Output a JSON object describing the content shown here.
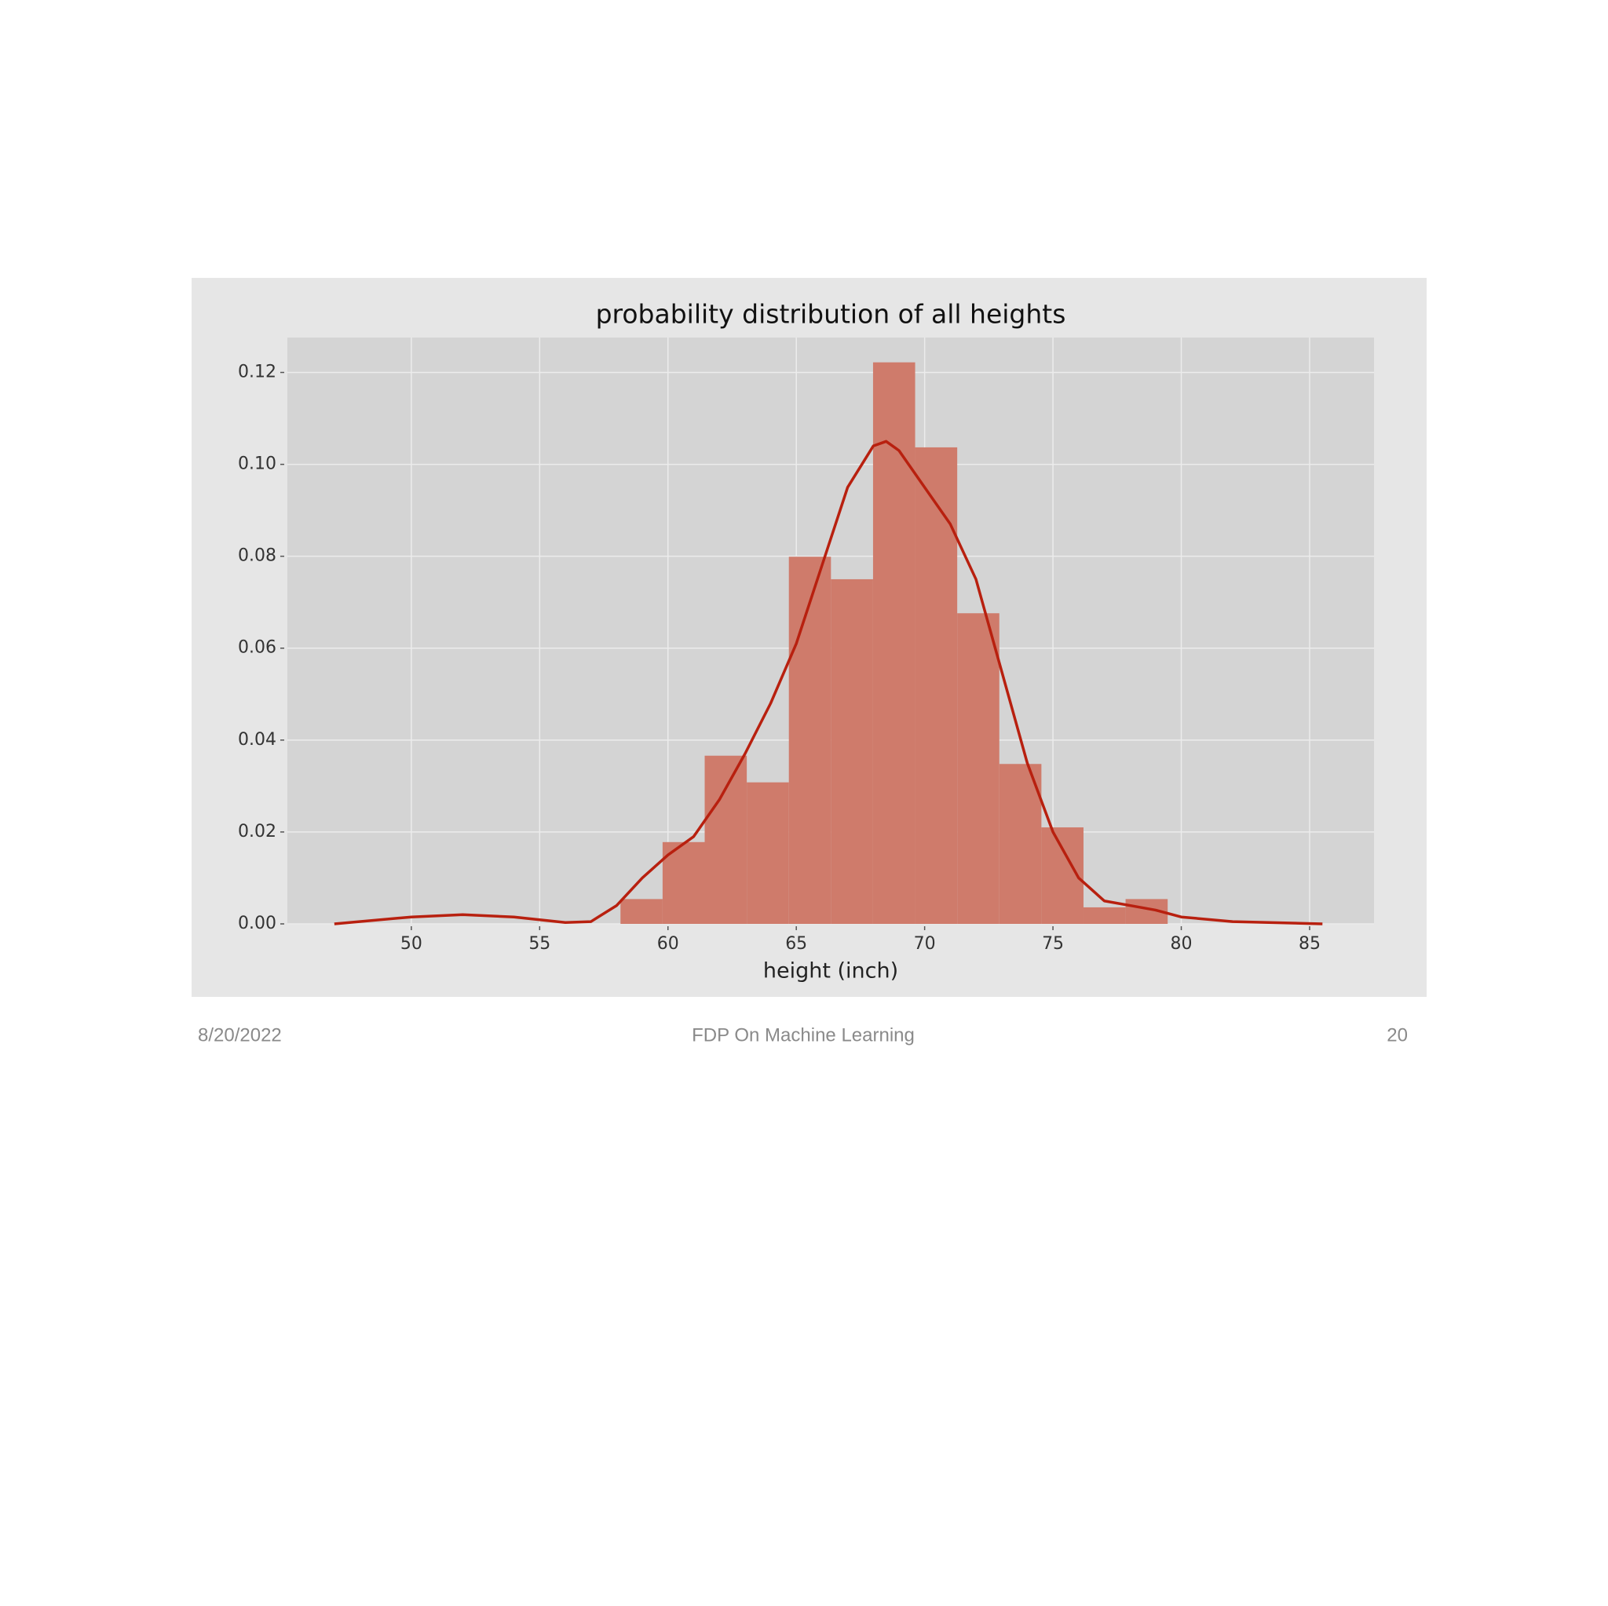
{
  "chart_data": {
    "type": "histogram",
    "title": "probability distribution of all heights",
    "x_label": "height (inch)",
    "bins": [
      58.15,
      59.79,
      61.43,
      63.07,
      64.71,
      66.35,
      67.99,
      69.63,
      71.27,
      72.91,
      74.55,
      76.19,
      77.83,
      79.47
    ],
    "values": [
      0.0054,
      0.0178,
      0.0366,
      0.0308,
      0.0799,
      0.075,
      0.1222,
      0.1037,
      0.0676,
      0.0348,
      0.021,
      0.0036,
      0.0054
    ],
    "color": "#cf7b6b",
    "kde": {
      "color": "#b8200f",
      "x": [
        47,
        50,
        52,
        54,
        56,
        57,
        58,
        59,
        60,
        61,
        62,
        63,
        64,
        65,
        66,
        67,
        68,
        68.5,
        69,
        70,
        71,
        72,
        73,
        74,
        75,
        76,
        77,
        78,
        79,
        80,
        82,
        85.5
      ],
      "values": [
        0,
        0.0015,
        0.002,
        0.0015,
        0.0003,
        0.0005,
        0.004,
        0.01,
        0.015,
        0.019,
        0.027,
        0.037,
        0.048,
        0.061,
        0.078,
        0.095,
        0.104,
        0.105,
        0.103,
        0.095,
        0.087,
        0.075,
        0.055,
        0.035,
        0.02,
        0.01,
        0.005,
        0.004,
        0.003,
        0.0015,
        0.0005,
        0
      ]
    },
    "xlim": [
      45.17,
      87.51
    ],
    "ylim": [
      0,
      0.1276
    ],
    "xticks": [
      50,
      55,
      60,
      65,
      70,
      75,
      80,
      85
    ],
    "yticks": [
      {
        "value": 0,
        "label": "0.00"
      },
      0.02,
      0.04,
      0.06,
      0.08,
      {
        "value": 0.1,
        "label": "0.10"
      },
      0.12
    ],
    "grid": true
  },
  "footer": {
    "date": "8/20/2022",
    "center": "FDP On Machine Learning",
    "page": "20"
  }
}
